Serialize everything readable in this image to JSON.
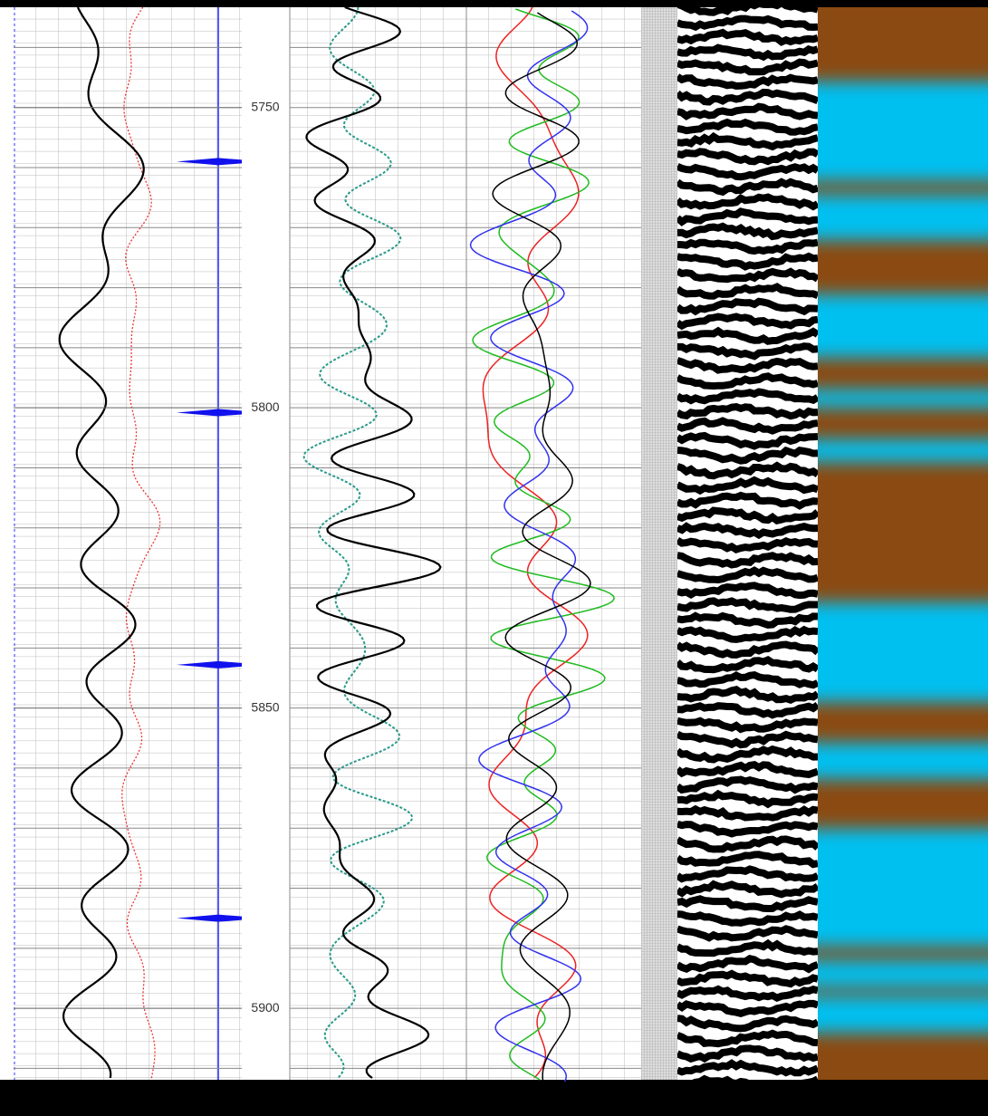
{
  "chart_data": {
    "type": "well-log",
    "ylim": [
      5733.3,
      5911.9
    ],
    "yticks": [
      5750,
      5800,
      5850,
      5900
    ],
    "markers": [
      5759,
      5800.8,
      5842.8,
      5885
    ]
  }
}
